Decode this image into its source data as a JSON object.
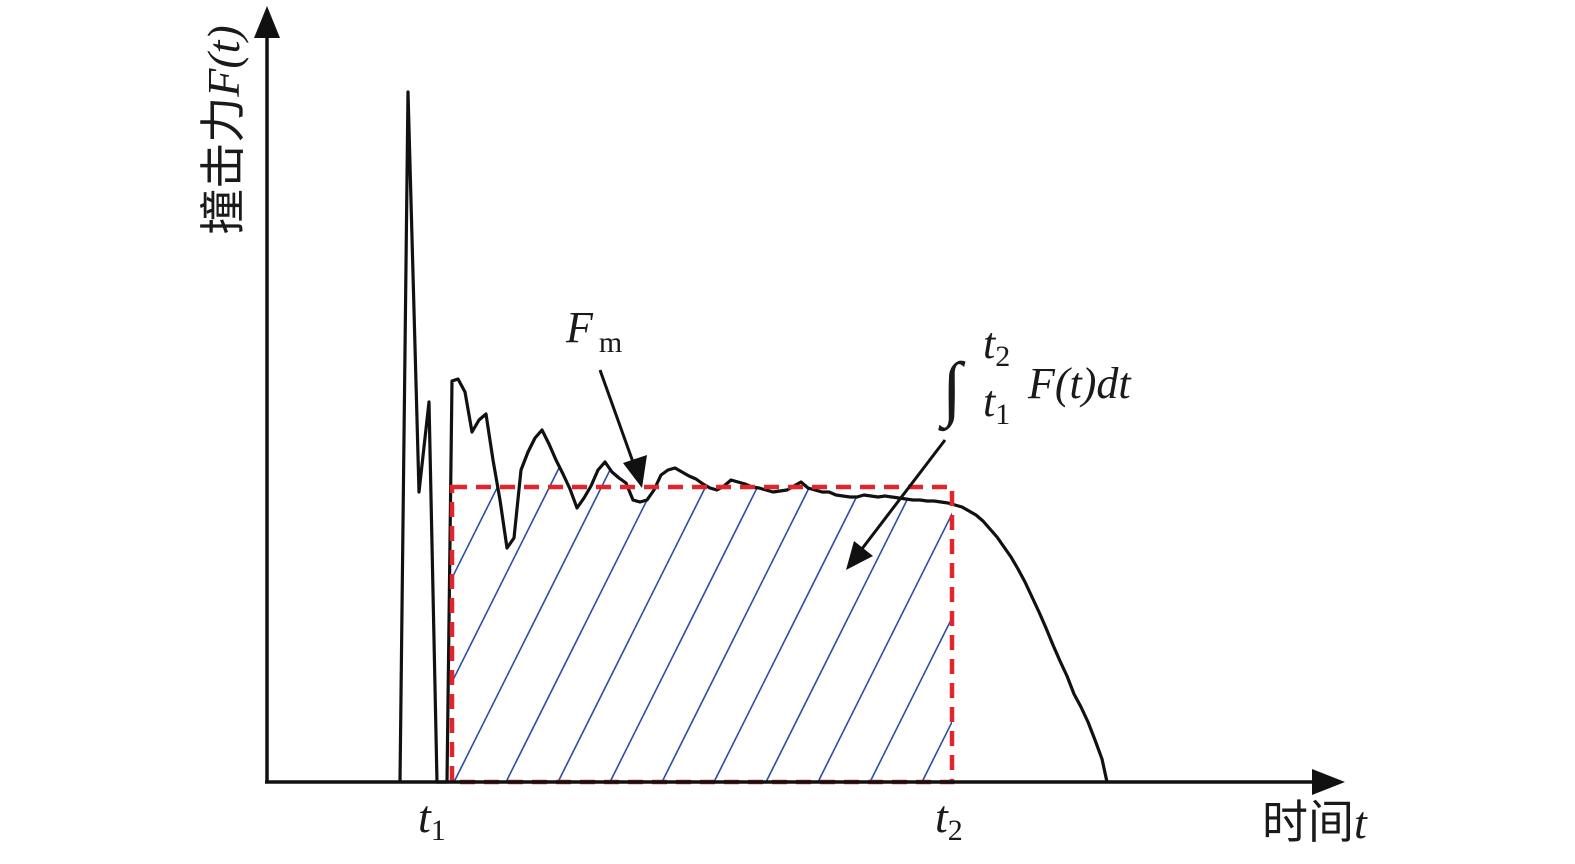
{
  "axes": {
    "y_label_cjk": "撞击力",
    "y_label_math": "F(t)",
    "x_label_cjk": "时间",
    "x_label_math": "t"
  },
  "ticks": [
    {
      "symbol": "t",
      "subscript": "1"
    },
    {
      "symbol": "t",
      "subscript": "2"
    }
  ],
  "annotations": {
    "peak_symbol": "F",
    "peak_subscript": "m",
    "integral_sign": "∫",
    "integral_upper": "t",
    "integral_upper_sub": "2",
    "integral_lower": "t",
    "integral_lower_sub": "1",
    "integrand": "F(t)dt"
  },
  "colors": {
    "curve": "#111111",
    "dashed_rect": "#e0262b",
    "hatch": "#2b4fa0",
    "axis": "#111111"
  }
}
